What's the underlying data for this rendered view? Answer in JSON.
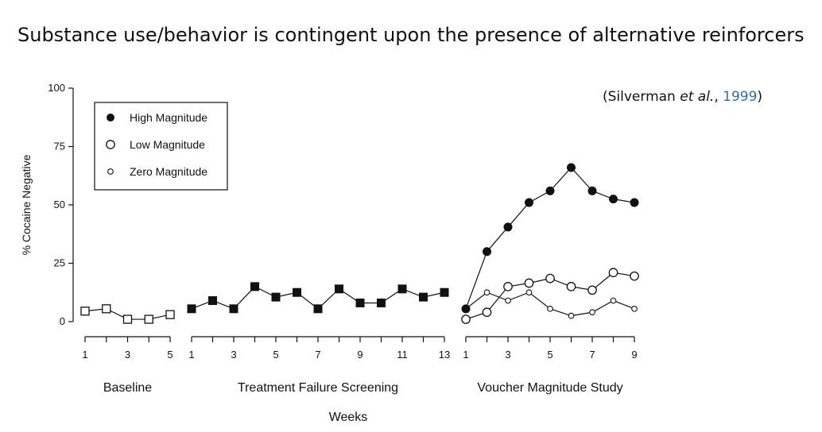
{
  "slide": {
    "title": "Substance use/behavior is contingent upon the presence of alternative reinforcers",
    "citation": {
      "prefix": "(Silverman ",
      "etal": "et al.",
      "sep": ", ",
      "year": "1999",
      "suffix": ")"
    }
  },
  "chart_data": {
    "type": "line",
    "ylabel": "% Cocaine Negative",
    "xlabel": "Weeks",
    "ylim": [
      0,
      100
    ],
    "yticks": [
      0,
      25,
      50,
      75,
      100
    ],
    "legend": {
      "placement": "top-left",
      "entries": [
        "High Magnitude",
        "Low Magnitude",
        "Zero Magnitude"
      ]
    },
    "panels": [
      {
        "label": "Baseline",
        "xlim": [
          1,
          5
        ],
        "xticks": [
          "1",
          "3",
          "5"
        ],
        "series": [
          {
            "marker": "open-square",
            "x": [
              1,
              2,
              3,
              4,
              5
            ],
            "y": [
              4.5,
              5.5,
              1,
              1,
              3
            ]
          }
        ]
      },
      {
        "label": "Treatment Failure Screening",
        "xlim": [
          1,
          13
        ],
        "xticks": [
          "1",
          "3",
          "5",
          "7",
          "9",
          "11",
          "13"
        ],
        "series": [
          {
            "marker": "filled-square",
            "x": [
              1,
              2,
              3,
              4,
              5,
              6,
              7,
              8,
              9,
              10,
              11,
              12,
              13
            ],
            "y": [
              5.5,
              9,
              5.5,
              15,
              10.5,
              12.5,
              5.5,
              14,
              8,
              8,
              14,
              10.5,
              12.5
            ]
          }
        ]
      },
      {
        "label": "Voucher Magnitude Study",
        "xlim": [
          1,
          9
        ],
        "xticks": [
          "1",
          "3",
          "5",
          "7",
          "9"
        ],
        "series": [
          {
            "name": "High Magnitude",
            "marker": "filled-circle",
            "x": [
              1,
              2,
              3,
              4,
              5,
              6,
              7,
              8,
              9
            ],
            "y": [
              5.5,
              30,
              40.5,
              51,
              56,
              66,
              56,
              52.5,
              51
            ]
          },
          {
            "name": "Low Magnitude",
            "marker": "open-circle",
            "x": [
              1,
              2,
              3,
              4,
              5,
              6,
              7,
              8,
              9
            ],
            "y": [
              1,
              4,
              15,
              16.5,
              18.5,
              15,
              13.5,
              21,
              19.5
            ]
          },
          {
            "name": "Zero Magnitude",
            "marker": "small-open-circle",
            "x": [
              1,
              2,
              3,
              4,
              5,
              6,
              7,
              8,
              9
            ],
            "y": [
              5.5,
              12.5,
              9,
              12.5,
              5.5,
              2.5,
              4,
              9,
              5.5
            ]
          }
        ]
      }
    ]
  }
}
